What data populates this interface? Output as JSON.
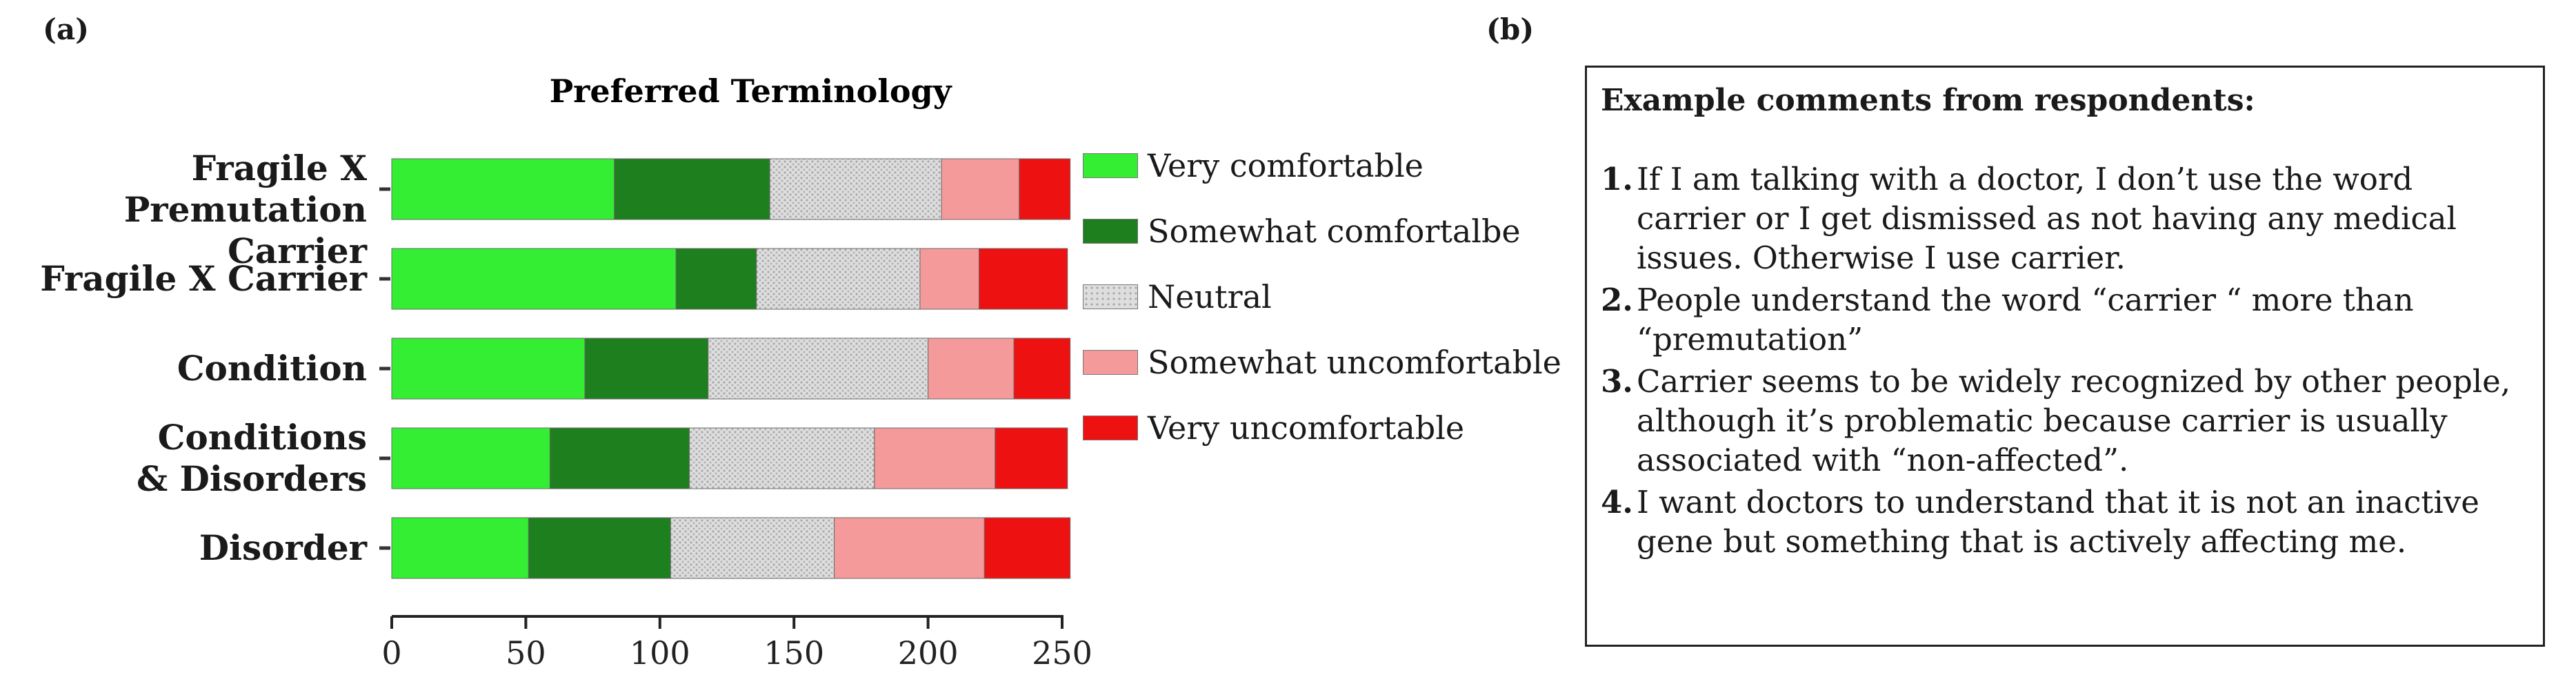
{
  "panel_a_label": "(a)",
  "panel_b_label": "(b)",
  "chart_data": {
    "type": "bar",
    "orientation": "horizontal",
    "stacked": true,
    "title": "Preferred Terminology",
    "categories": [
      "Fragile X Premutation Carrier",
      "Fragile X Carrier",
      "Condition",
      "Conditions & Disorders",
      "Disorder"
    ],
    "category_lines": [
      [
        "Fragile X",
        "Premutation Carrier"
      ],
      [
        "Fragile X Carrier"
      ],
      [
        "Condition"
      ],
      [
        "Conditions",
        "& Disorders"
      ],
      [
        "Disorder"
      ]
    ],
    "series": [
      {
        "name": "Very comfortable",
        "color": "#33ee33",
        "pattern": "solid",
        "values": [
          83,
          106,
          72,
          59,
          51
        ]
      },
      {
        "name": "Somewhat comfortalbe",
        "color": "#1e7f1e",
        "pattern": "solid",
        "values": [
          58,
          30,
          46,
          52,
          53
        ]
      },
      {
        "name": "Neutral",
        "color": "#d6d6d6",
        "pattern": "dotted",
        "values": [
          64,
          61,
          82,
          69,
          61
        ]
      },
      {
        "name": "Somewhat uncomfortable",
        "color": "#f49a9a",
        "pattern": "solid",
        "values": [
          29,
          22,
          32,
          45,
          56
        ]
      },
      {
        "name": "Very uncomfortable",
        "color": "#ee1111",
        "pattern": "solid",
        "values": [
          19,
          33,
          21,
          27,
          32
        ]
      }
    ],
    "xlim": [
      0,
      250
    ],
    "xticks": [
      0,
      50,
      100,
      150,
      200,
      250
    ],
    "grid": false,
    "legend_position": "right"
  },
  "comments": {
    "heading": "Example comments from respondents:",
    "items": [
      {
        "num": "1.",
        "text": "If I am talking with a doctor, I don’t use the word carrier or I get dismissed as not having any medical issues. Otherwise I use carrier."
      },
      {
        "num": "2.",
        "text": "People understand the word “carrier “ more than “premutation”"
      },
      {
        "num": "3.",
        "text": "Carrier seems to be widely recognized by other people, although it’s problematic because carrier is usually associated with “non-affected”."
      },
      {
        "num": "4.",
        "text": "I want doctors to understand that it is not an inactive gene but something that is actively affecting me."
      }
    ]
  }
}
